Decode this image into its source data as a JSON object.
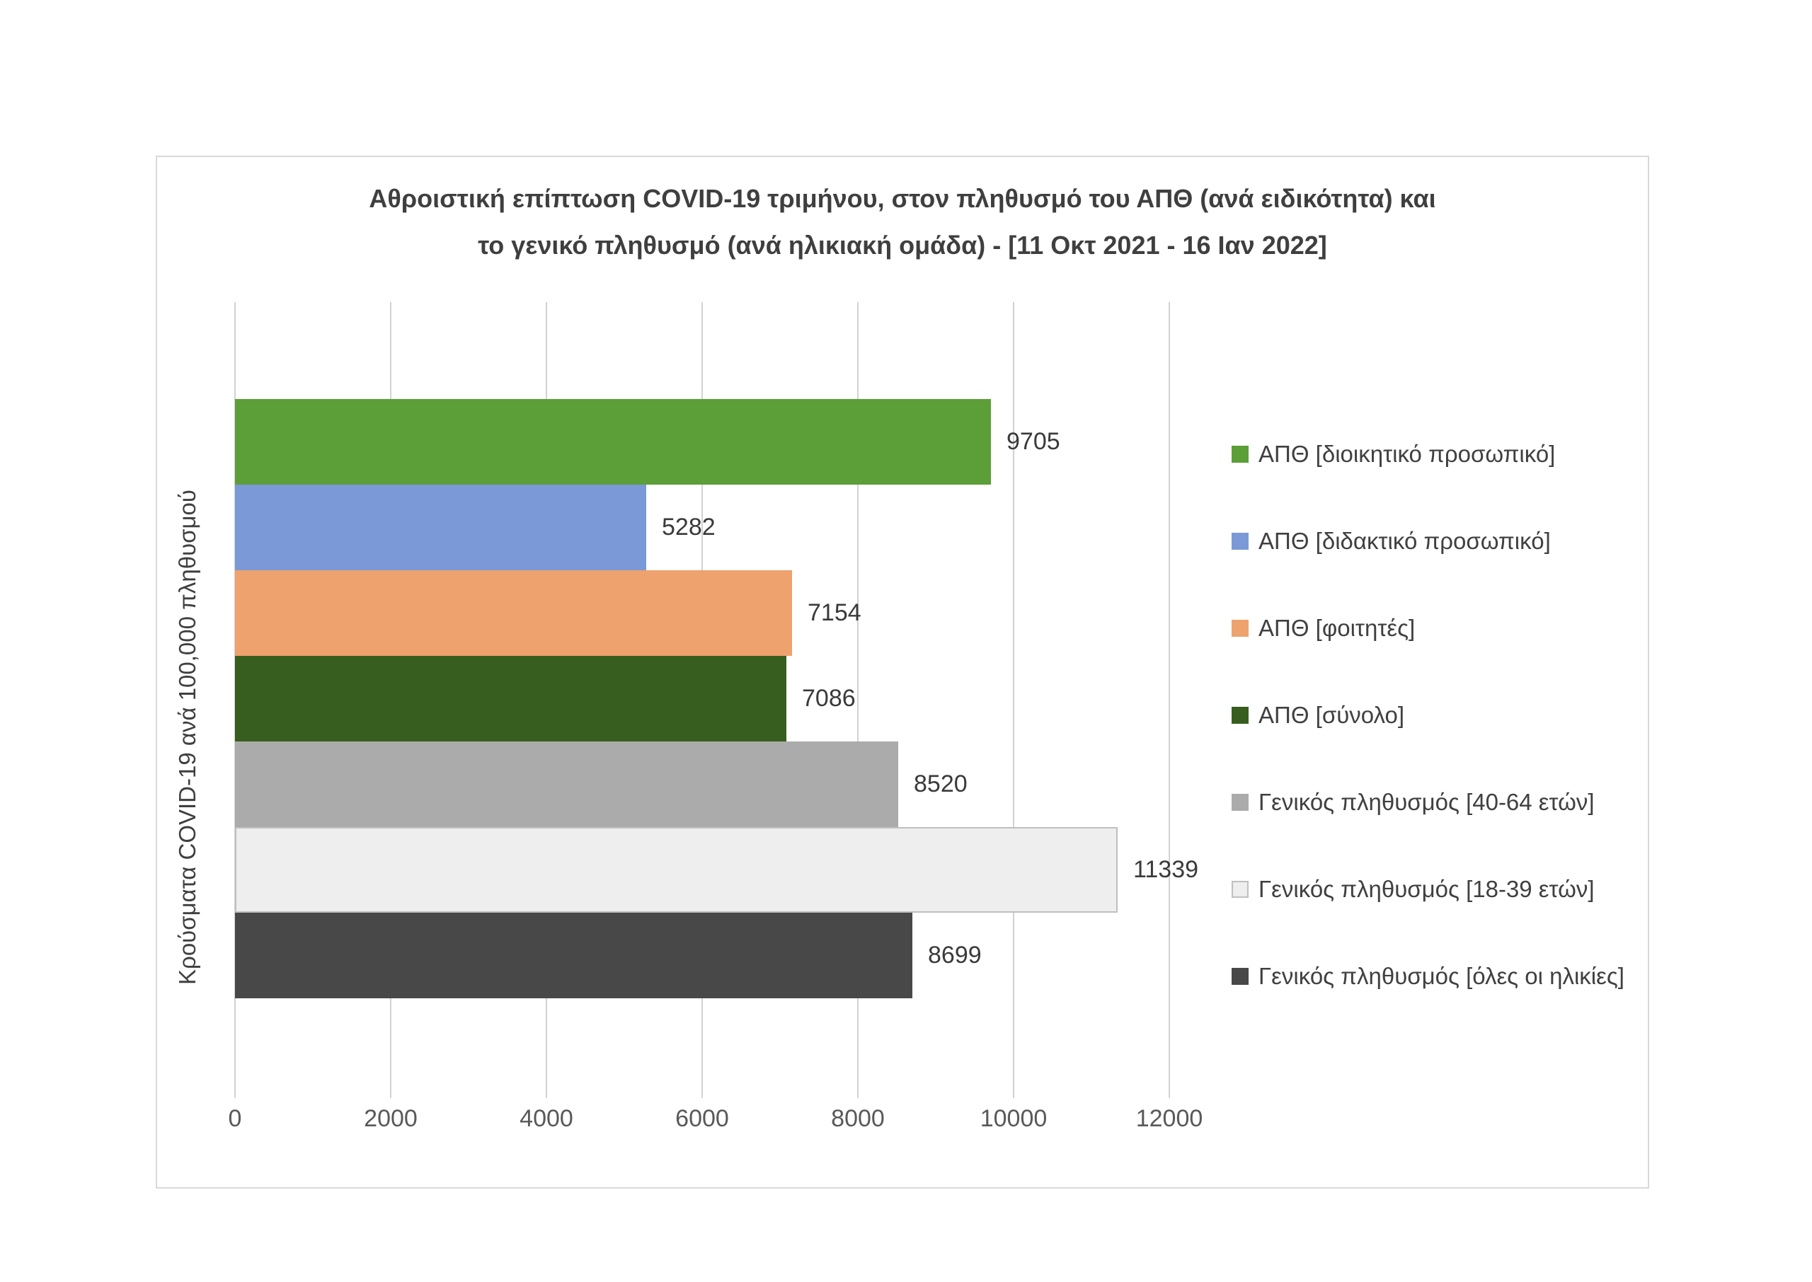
{
  "title": {
    "text": "Αθροιστική επίπτωση COVID-19 τριμήνου, στον πληθυσμό του ΑΠΘ (ανά ειδικότητα) και το γενικό πληθυσμό (ανά ηλικιακή ομάδα) - [11 Οκτ 2021 - 16 Ιαν 2022]",
    "line1": "Αθροιστική επίπτωση COVID-19 τριμήνου, στον πληθυσμό του ΑΠΘ (ανά ειδικότητα) και",
    "line2": "το γενικό πληθυσμό (ανά ηλικιακή ομάδα) - [11 Οκτ 2021 - 16 Ιαν 2022]"
  },
  "y_axis_title": "Κρούσματα COVID-19 ανά 100,000 πληθυσμού",
  "colors": {
    "frame_border": "#d9d9d9",
    "gridline": "#d2d2d2",
    "title_text": "#3f3f3f",
    "tick_text": "#595959",
    "value_text": "#3a3a3a",
    "legend_text": "#404040"
  },
  "chart_data": {
    "type": "bar",
    "orientation": "horizontal",
    "title": "Αθροιστική επίπτωση COVID-19 τριμήνου, στον πληθυσμό του ΑΠΘ (ανά ειδικότητα) και το γενικό πληθυσμό (ανά ηλικιακή ομάδα) - [11 Οκτ 2021 - 16 Ιαν 2022]",
    "ylabel": "Κρούσματα COVID-19 ανά 100,000 πληθυσμού",
    "xlabel": "",
    "xlim": [
      0,
      12000
    ],
    "x_ticks": [
      0,
      2000,
      4000,
      6000,
      8000,
      10000,
      12000
    ],
    "grid": true,
    "value_labels": true,
    "legend_position": "right",
    "series": [
      {
        "name": "ΑΠΘ [διοικητικό προσωπικό]",
        "value": 9705,
        "color": "#5c9e38",
        "border": null
      },
      {
        "name": "ΑΠΘ [διδακτικό προσωπικό]",
        "value": 5282,
        "color": "#7a99d6",
        "border": null
      },
      {
        "name": "ΑΠΘ [φοιτητές]",
        "value": 7154,
        "color": "#eea26d",
        "border": null
      },
      {
        "name": "ΑΠΘ [σύνολο]",
        "value": 7086,
        "color": "#375d1f",
        "border": null
      },
      {
        "name": "Γενικός πληθυσμός [40-64 ετών]",
        "value": 8520,
        "color": "#ababab",
        "border": null
      },
      {
        "name": "Γενικός πληθυσμός [18-39 ετών]",
        "value": 11339,
        "color": "#eeeeee",
        "border": "#bfbfbf"
      },
      {
        "name": "Γενικός πληθυσμός [όλες οι ηλικίες]",
        "value": 8699,
        "color": "#484848",
        "border": null
      }
    ]
  }
}
